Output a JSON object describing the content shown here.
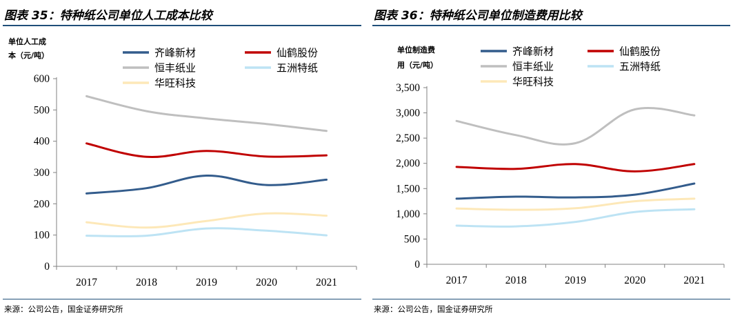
{
  "source": "来源：公司公告，国金证券研究所",
  "charts": [
    {
      "fig_title": "图表 35：特种纸公司单位人工成本比较",
      "chart_data": {
        "type": "line",
        "title": "特种纸公司单位人工成本比较",
        "ylabel_lines": [
          "单位人工成",
          "本（元/吨）"
        ],
        "categories": [
          "2017",
          "2018",
          "2019",
          "2020",
          "2021"
        ],
        "ylim": [
          0,
          600
        ],
        "yticks": [
          0,
          100,
          200,
          300,
          400,
          500,
          600
        ],
        "ytick_labels": [
          "0",
          "100",
          "200",
          "300",
          "400",
          "500",
          "600"
        ],
        "grid": false,
        "legend_placement": "top",
        "series": [
          {
            "name": "齐峰新材",
            "color": "#335c8c",
            "values": [
              233,
              250,
              290,
              260,
              277
            ]
          },
          {
            "name": "仙鹤股份",
            "color": "#c00000",
            "values": [
              393,
              350,
              369,
              351,
              355
            ]
          },
          {
            "name": "恒丰纸业",
            "color": "#bfbfbf",
            "values": [
              544,
              496,
              473,
              455,
              433
            ]
          },
          {
            "name": "五洲特纸",
            "color": "#bde3f4",
            "values": [
              98,
              98,
              121,
              114,
              99
            ]
          },
          {
            "name": "华旺科技",
            "color": "#fde8b8",
            "values": [
              141,
              124,
              145,
              169,
              162
            ]
          }
        ]
      }
    },
    {
      "fig_title": "图表 36：特种纸公司单位制造费用比较",
      "chart_data": {
        "type": "line",
        "title": "特种纸公司单位制造费用比较",
        "ylabel_lines": [
          "单位制造费",
          "用（元/吨）"
        ],
        "categories": [
          "2017",
          "2018",
          "2019",
          "2020",
          "2021"
        ],
        "ylim": [
          0,
          3500
        ],
        "yticks": [
          0,
          500,
          1000,
          1500,
          2000,
          2500,
          3000,
          3500
        ],
        "ytick_labels": [
          "0",
          "500",
          "1,000",
          "1,500",
          "2,000",
          "2,500",
          "3,000",
          "3,500"
        ],
        "grid": false,
        "legend_placement": "top",
        "series": [
          {
            "name": "齐峰新材",
            "color": "#335c8c",
            "values": [
              1300,
              1340,
              1325,
              1380,
              1600
            ]
          },
          {
            "name": "仙鹤股份",
            "color": "#c00000",
            "values": [
              1930,
              1890,
              1985,
              1840,
              1985
            ]
          },
          {
            "name": "恒丰纸业",
            "color": "#bfbfbf",
            "values": [
              2840,
              2560,
              2400,
              3070,
              2950
            ]
          },
          {
            "name": "五洲特纸",
            "color": "#bde3f4",
            "values": [
              765,
              750,
              840,
              1035,
              1090
            ]
          },
          {
            "name": "华旺科技",
            "color": "#fde8b8",
            "values": [
              1105,
              1080,
              1110,
              1250,
              1300
            ]
          }
        ]
      }
    }
  ]
}
